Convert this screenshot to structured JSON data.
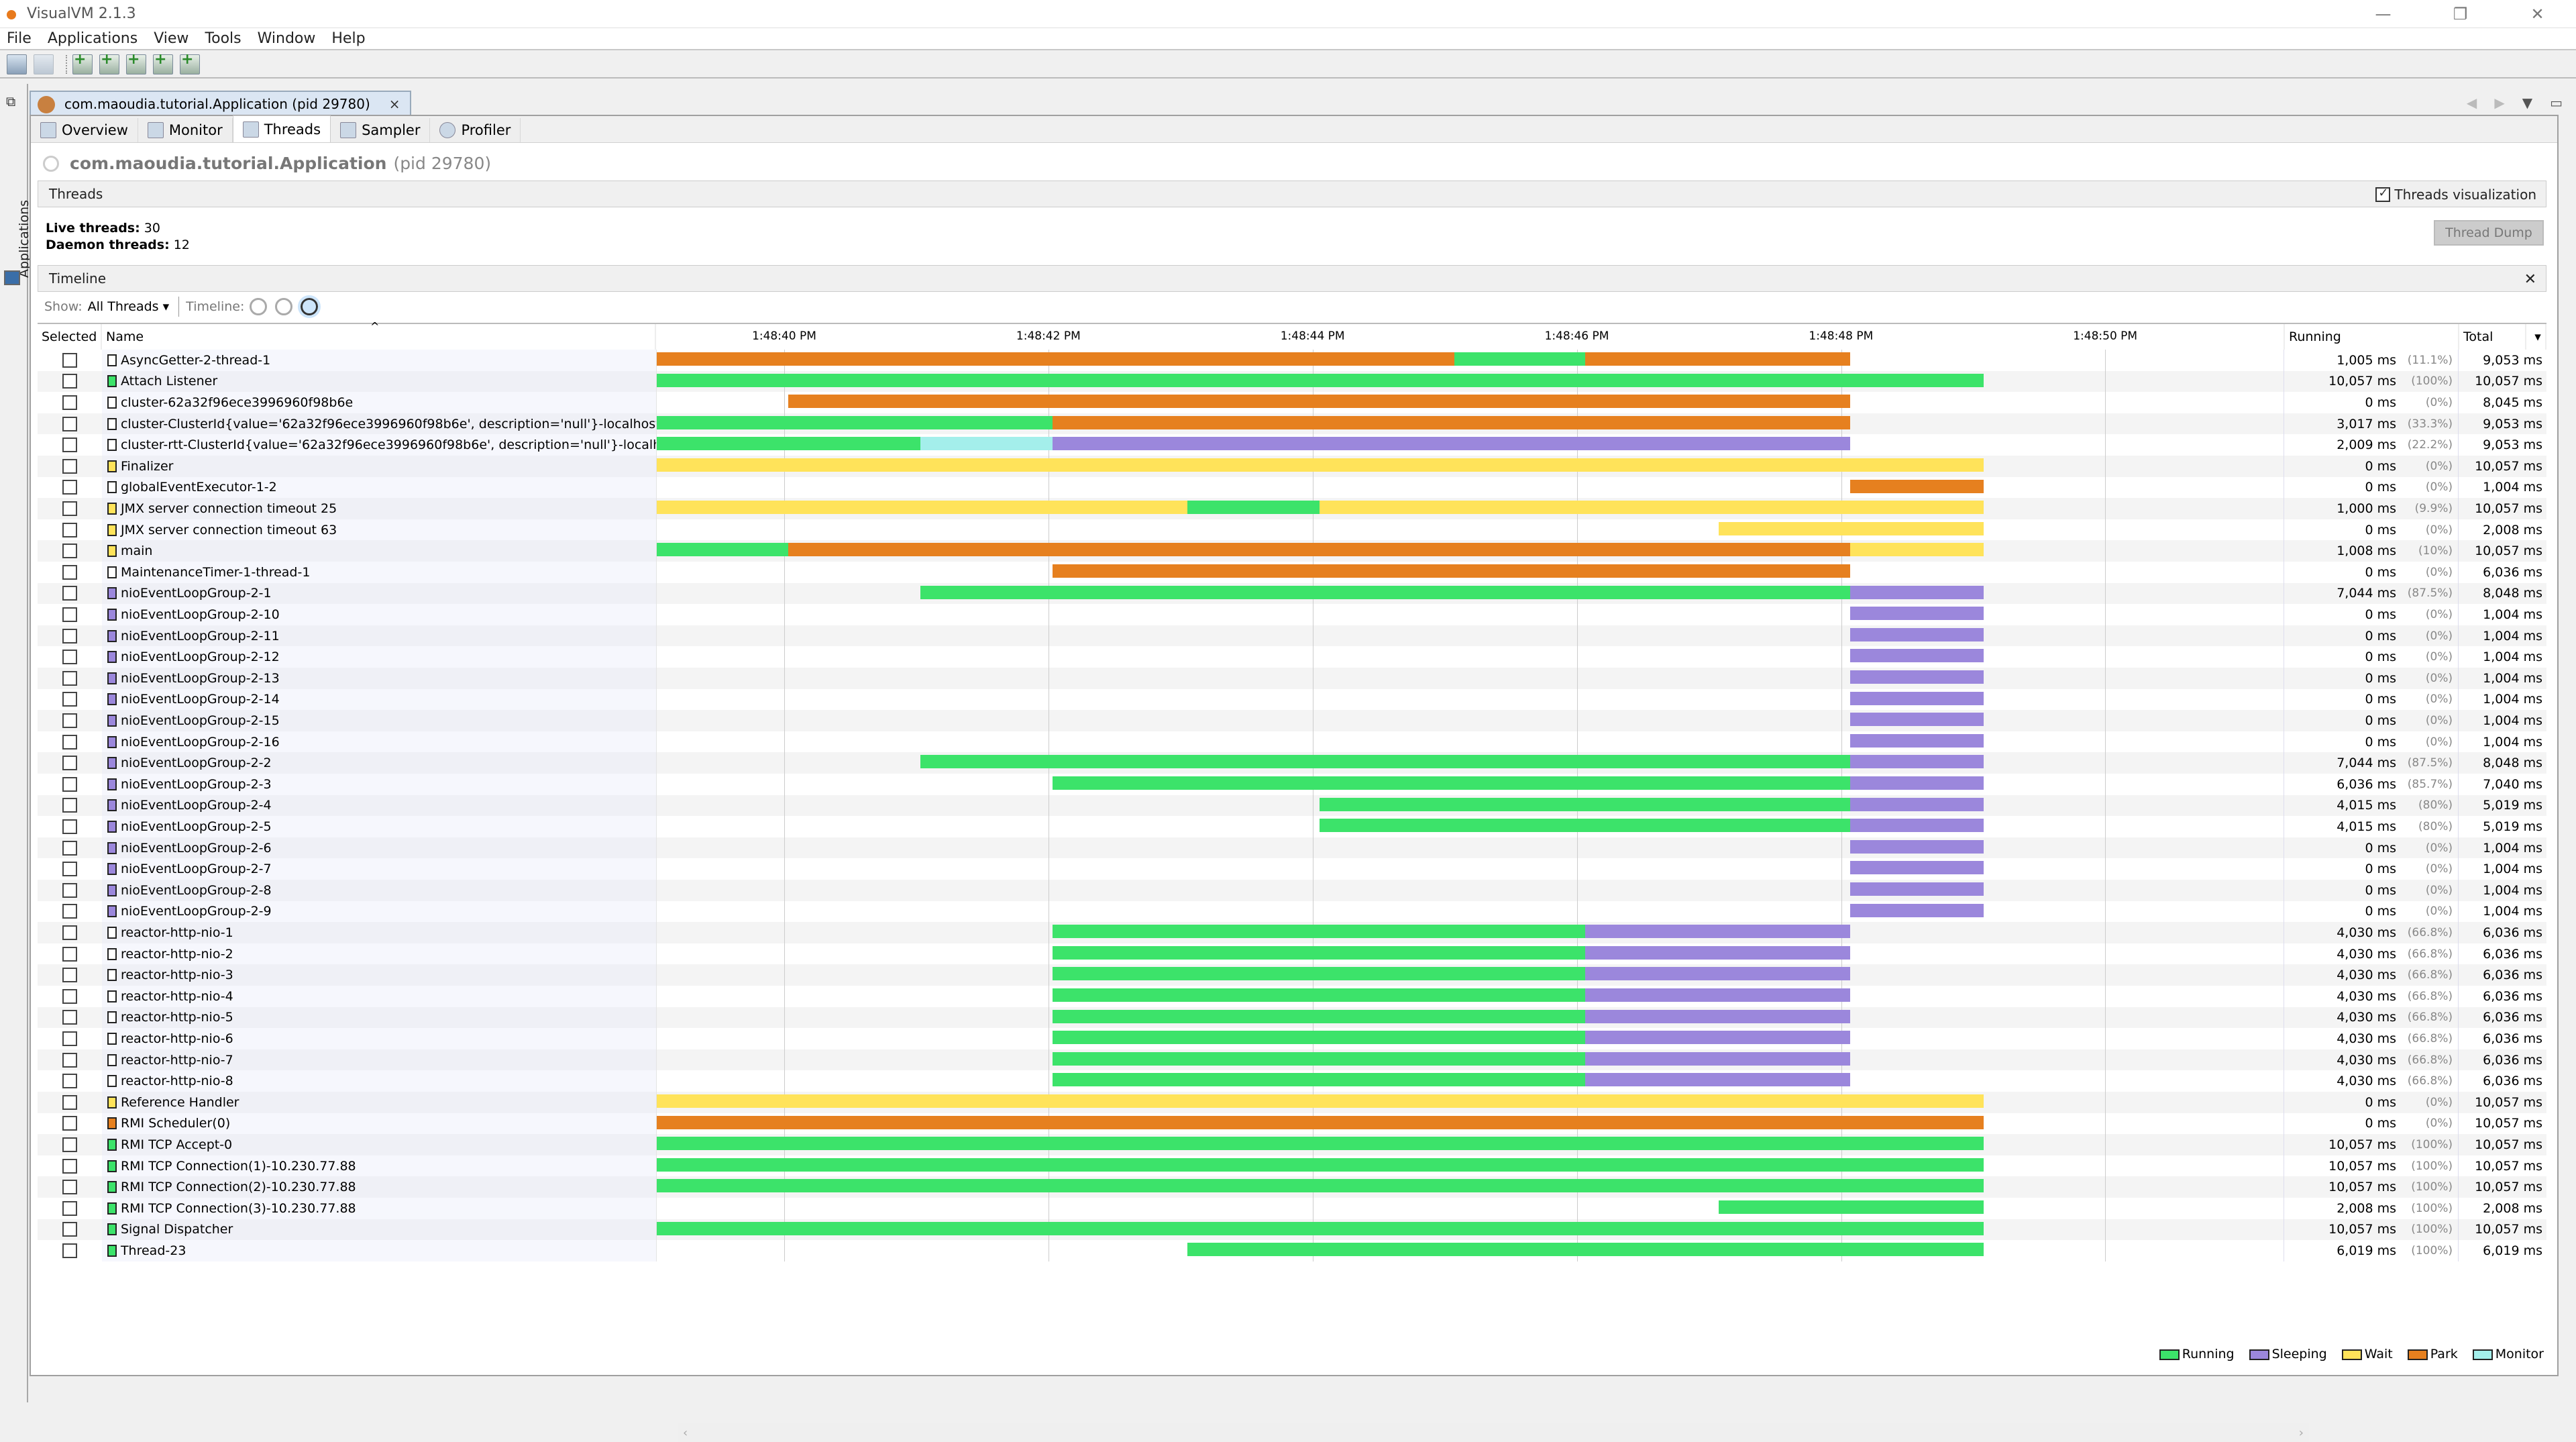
{
  "window": {
    "title": "VisualVM 2.1.3",
    "controls": [
      "minimize",
      "restore",
      "close"
    ]
  },
  "menu": [
    "File",
    "Applications",
    "View",
    "Tools",
    "Window",
    "Help"
  ],
  "toolbar": [
    "open-icon",
    "save-icon",
    "add-remote-host-icon",
    "add-jmx-connection-icon",
    "add-core-dump-icon",
    "add-heap-dump-icon",
    "add-snapshot-icon"
  ],
  "sidebar": {
    "label": "Applications"
  },
  "doc_tab": {
    "label": "com.maoudia.tutorial.Application (pid 29780)",
    "close": "×"
  },
  "view_tabs": [
    {
      "label": "Overview",
      "active": false
    },
    {
      "label": "Monitor",
      "active": false
    },
    {
      "label": "Threads",
      "active": true
    },
    {
      "label": "Sampler",
      "active": false
    },
    {
      "label": "Profiler",
      "active": false
    }
  ],
  "app": {
    "name": "com.maoudia.tutorial.Application",
    "pid": "(pid 29780)"
  },
  "threads_section": {
    "title": "Threads",
    "visualization_label": "Threads visualization",
    "visualization_checked": true,
    "live_label": "Live threads:",
    "live_value": "30",
    "daemon_label": "Daemon threads:",
    "daemon_value": "12",
    "dump_button": "Thread Dump"
  },
  "timeline_section": {
    "title": "Timeline",
    "close": "✕",
    "show_label": "Show:",
    "show_value": "All Threads",
    "timeline_label": "Timeline:"
  },
  "columns": {
    "selected": "Selected",
    "name": "Name",
    "running": "Running",
    "total": "Total"
  },
  "colors": {
    "Running": "#3ce36a",
    "Sleeping": "#9b87dc",
    "Wait": "#ffe35a",
    "Park": "#e6801f",
    "Monitor": "#a4efeb",
    "None": "#ffffff"
  },
  "legend": [
    "Running",
    "Sleeping",
    "Wait",
    "Park",
    "Monitor"
  ],
  "chart_data": {
    "type": "timeline",
    "title": "Threads Timeline",
    "x_ticks": [
      "1:48:40 PM",
      "1:48:42 PM",
      "1:48:44 PM",
      "1:48:46 PM",
      "1:48:48 PM",
      "1:48:50 PM"
    ],
    "tick_offsets_s": [
      0.97,
      2.97,
      4.97,
      6.97,
      8.97,
      10.97
    ],
    "x_range_s": [
      0,
      12.32
    ],
    "threads": [
      {
        "name": "AsyncGetter-2-thread-1",
        "state": "None",
        "running": "1,005 ms",
        "pct": "(11.1%)",
        "total": "9,053 ms",
        "segments": [
          [
            0,
            6.04,
            "Park"
          ],
          [
            6.04,
            7.03,
            "Running"
          ],
          [
            7.03,
            9.04,
            "Park"
          ]
        ]
      },
      {
        "name": "Attach Listener",
        "state": "Running",
        "running": "10,057 ms",
        "pct": "(100%)",
        "total": "10,057 ms",
        "segments": [
          [
            0,
            10.05,
            "Running"
          ]
        ]
      },
      {
        "name": "cluster-62a32f96ece3996960f98b6e",
        "state": "None",
        "running": "0 ms",
        "pct": "(0%)",
        "total": "8,045 ms",
        "segments": [
          [
            1.0,
            9.04,
            "Park"
          ]
        ]
      },
      {
        "name": "cluster-ClusterId{value='62a32f96ece3996960f98b6e', description='null'}-localhost:15015",
        "state": "None",
        "running": "3,017 ms",
        "pct": "(33.3%)",
        "total": "9,053 ms",
        "segments": [
          [
            0,
            3.0,
            "Running"
          ],
          [
            3.0,
            9.04,
            "Park"
          ]
        ]
      },
      {
        "name": "cluster-rtt-ClusterId{value='62a32f96ece3996960f98b6e', description='null'}-localhost:15015",
        "state": "None",
        "running": "2,009 ms",
        "pct": "(22.2%)",
        "total": "9,053 ms",
        "segments": [
          [
            0,
            2.0,
            "Running"
          ],
          [
            2.0,
            3.0,
            "Monitor"
          ],
          [
            3.0,
            9.04,
            "Sleeping"
          ]
        ]
      },
      {
        "name": "Finalizer",
        "state": "Wait",
        "running": "0 ms",
        "pct": "(0%)",
        "total": "10,057 ms",
        "segments": [
          [
            0,
            10.05,
            "Wait"
          ]
        ]
      },
      {
        "name": "globalEventExecutor-1-2",
        "state": "None",
        "running": "0 ms",
        "pct": "(0%)",
        "total": "1,004 ms",
        "segments": [
          [
            9.04,
            10.05,
            "Park"
          ]
        ]
      },
      {
        "name": "JMX server connection timeout 25",
        "state": "Wait",
        "running": "1,000 ms",
        "pct": "(9.9%)",
        "total": "10,057 ms",
        "segments": [
          [
            0,
            4.02,
            "Wait"
          ],
          [
            4.02,
            5.02,
            "Running"
          ],
          [
            5.02,
            10.05,
            "Wait"
          ]
        ]
      },
      {
        "name": "JMX server connection timeout 63",
        "state": "Wait",
        "running": "0 ms",
        "pct": "(0%)",
        "total": "2,008 ms",
        "segments": [
          [
            8.04,
            10.05,
            "Wait"
          ]
        ]
      },
      {
        "name": "main",
        "state": "Wait",
        "running": "1,008 ms",
        "pct": "(10%)",
        "total": "10,057 ms",
        "segments": [
          [
            0,
            1.0,
            "Running"
          ],
          [
            1.0,
            9.04,
            "Park"
          ],
          [
            9.04,
            10.05,
            "Wait"
          ]
        ]
      },
      {
        "name": "MaintenanceTimer-1-thread-1",
        "state": "None",
        "running": "0 ms",
        "pct": "(0%)",
        "total": "6,036 ms",
        "segments": [
          [
            3.0,
            9.04,
            "Park"
          ]
        ]
      },
      {
        "name": "nioEventLoopGroup-2-1",
        "state": "Sleeping",
        "running": "7,044 ms",
        "pct": "(87.5%)",
        "total": "8,048 ms",
        "segments": [
          [
            2.0,
            9.04,
            "Running"
          ],
          [
            9.04,
            10.05,
            "Sleeping"
          ]
        ]
      },
      {
        "name": "nioEventLoopGroup-2-10",
        "state": "Sleeping",
        "running": "0 ms",
        "pct": "(0%)",
        "total": "1,004 ms",
        "segments": [
          [
            9.04,
            10.05,
            "Sleeping"
          ]
        ]
      },
      {
        "name": "nioEventLoopGroup-2-11",
        "state": "Sleeping",
        "running": "0 ms",
        "pct": "(0%)",
        "total": "1,004 ms",
        "segments": [
          [
            9.04,
            10.05,
            "Sleeping"
          ]
        ]
      },
      {
        "name": "nioEventLoopGroup-2-12",
        "state": "Sleeping",
        "running": "0 ms",
        "pct": "(0%)",
        "total": "1,004 ms",
        "segments": [
          [
            9.04,
            10.05,
            "Sleeping"
          ]
        ]
      },
      {
        "name": "nioEventLoopGroup-2-13",
        "state": "Sleeping",
        "running": "0 ms",
        "pct": "(0%)",
        "total": "1,004 ms",
        "segments": [
          [
            9.04,
            10.05,
            "Sleeping"
          ]
        ]
      },
      {
        "name": "nioEventLoopGroup-2-14",
        "state": "Sleeping",
        "running": "0 ms",
        "pct": "(0%)",
        "total": "1,004 ms",
        "segments": [
          [
            9.04,
            10.05,
            "Sleeping"
          ]
        ]
      },
      {
        "name": "nioEventLoopGroup-2-15",
        "state": "Sleeping",
        "running": "0 ms",
        "pct": "(0%)",
        "total": "1,004 ms",
        "segments": [
          [
            9.04,
            10.05,
            "Sleeping"
          ]
        ]
      },
      {
        "name": "nioEventLoopGroup-2-16",
        "state": "Sleeping",
        "running": "0 ms",
        "pct": "(0%)",
        "total": "1,004 ms",
        "segments": [
          [
            9.04,
            10.05,
            "Sleeping"
          ]
        ]
      },
      {
        "name": "nioEventLoopGroup-2-2",
        "state": "Sleeping",
        "running": "7,044 ms",
        "pct": "(87.5%)",
        "total": "8,048 ms",
        "segments": [
          [
            2.0,
            9.04,
            "Running"
          ],
          [
            9.04,
            10.05,
            "Sleeping"
          ]
        ]
      },
      {
        "name": "nioEventLoopGroup-2-3",
        "state": "Sleeping",
        "running": "6,036 ms",
        "pct": "(85.7%)",
        "total": "7,040 ms",
        "segments": [
          [
            3.0,
            9.04,
            "Running"
          ],
          [
            9.04,
            10.05,
            "Sleeping"
          ]
        ]
      },
      {
        "name": "nioEventLoopGroup-2-4",
        "state": "Sleeping",
        "running": "4,015 ms",
        "pct": "(80%)",
        "total": "5,019 ms",
        "segments": [
          [
            5.02,
            9.04,
            "Running"
          ],
          [
            9.04,
            10.05,
            "Sleeping"
          ]
        ]
      },
      {
        "name": "nioEventLoopGroup-2-5",
        "state": "Sleeping",
        "running": "4,015 ms",
        "pct": "(80%)",
        "total": "5,019 ms",
        "segments": [
          [
            5.02,
            9.04,
            "Running"
          ],
          [
            9.04,
            10.05,
            "Sleeping"
          ]
        ]
      },
      {
        "name": "nioEventLoopGroup-2-6",
        "state": "Sleeping",
        "running": "0 ms",
        "pct": "(0%)",
        "total": "1,004 ms",
        "segments": [
          [
            9.04,
            10.05,
            "Sleeping"
          ]
        ]
      },
      {
        "name": "nioEventLoopGroup-2-7",
        "state": "Sleeping",
        "running": "0 ms",
        "pct": "(0%)",
        "total": "1,004 ms",
        "segments": [
          [
            9.04,
            10.05,
            "Sleeping"
          ]
        ]
      },
      {
        "name": "nioEventLoopGroup-2-8",
        "state": "Sleeping",
        "running": "0 ms",
        "pct": "(0%)",
        "total": "1,004 ms",
        "segments": [
          [
            9.04,
            10.05,
            "Sleeping"
          ]
        ]
      },
      {
        "name": "nioEventLoopGroup-2-9",
        "state": "Sleeping",
        "running": "0 ms",
        "pct": "(0%)",
        "total": "1,004 ms",
        "segments": [
          [
            9.04,
            10.05,
            "Sleeping"
          ]
        ]
      },
      {
        "name": "reactor-http-nio-1",
        "state": "None",
        "running": "4,030 ms",
        "pct": "(66.8%)",
        "total": "6,036 ms",
        "segments": [
          [
            3.0,
            7.03,
            "Running"
          ],
          [
            7.03,
            9.04,
            "Sleeping"
          ]
        ]
      },
      {
        "name": "reactor-http-nio-2",
        "state": "None",
        "running": "4,030 ms",
        "pct": "(66.8%)",
        "total": "6,036 ms",
        "segments": [
          [
            3.0,
            7.03,
            "Running"
          ],
          [
            7.03,
            9.04,
            "Sleeping"
          ]
        ]
      },
      {
        "name": "reactor-http-nio-3",
        "state": "None",
        "running": "4,030 ms",
        "pct": "(66.8%)",
        "total": "6,036 ms",
        "segments": [
          [
            3.0,
            7.03,
            "Running"
          ],
          [
            7.03,
            9.04,
            "Sleeping"
          ]
        ]
      },
      {
        "name": "reactor-http-nio-4",
        "state": "None",
        "running": "4,030 ms",
        "pct": "(66.8%)",
        "total": "6,036 ms",
        "segments": [
          [
            3.0,
            7.03,
            "Running"
          ],
          [
            7.03,
            9.04,
            "Sleeping"
          ]
        ]
      },
      {
        "name": "reactor-http-nio-5",
        "state": "None",
        "running": "4,030 ms",
        "pct": "(66.8%)",
        "total": "6,036 ms",
        "segments": [
          [
            3.0,
            7.03,
            "Running"
          ],
          [
            7.03,
            9.04,
            "Sleeping"
          ]
        ]
      },
      {
        "name": "reactor-http-nio-6",
        "state": "None",
        "running": "4,030 ms",
        "pct": "(66.8%)",
        "total": "6,036 ms",
        "segments": [
          [
            3.0,
            7.03,
            "Running"
          ],
          [
            7.03,
            9.04,
            "Sleeping"
          ]
        ]
      },
      {
        "name": "reactor-http-nio-7",
        "state": "None",
        "running": "4,030 ms",
        "pct": "(66.8%)",
        "total": "6,036 ms",
        "segments": [
          [
            3.0,
            7.03,
            "Running"
          ],
          [
            7.03,
            9.04,
            "Sleeping"
          ]
        ]
      },
      {
        "name": "reactor-http-nio-8",
        "state": "None",
        "running": "4,030 ms",
        "pct": "(66.8%)",
        "total": "6,036 ms",
        "segments": [
          [
            3.0,
            7.03,
            "Running"
          ],
          [
            7.03,
            9.04,
            "Sleeping"
          ]
        ]
      },
      {
        "name": "Reference Handler",
        "state": "Wait",
        "running": "0 ms",
        "pct": "(0%)",
        "total": "10,057 ms",
        "segments": [
          [
            0,
            10.05,
            "Wait"
          ]
        ]
      },
      {
        "name": "RMI Scheduler(0)",
        "state": "Park",
        "running": "0 ms",
        "pct": "(0%)",
        "total": "10,057 ms",
        "segments": [
          [
            0,
            10.05,
            "Park"
          ]
        ]
      },
      {
        "name": "RMI TCP Accept-0",
        "state": "Running",
        "running": "10,057 ms",
        "pct": "(100%)",
        "total": "10,057 ms",
        "segments": [
          [
            0,
            10.05,
            "Running"
          ]
        ]
      },
      {
        "name": "RMI TCP Connection(1)-10.230.77.88",
        "state": "Running",
        "running": "10,057 ms",
        "pct": "(100%)",
        "total": "10,057 ms",
        "segments": [
          [
            0,
            10.05,
            "Running"
          ]
        ]
      },
      {
        "name": "RMI TCP Connection(2)-10.230.77.88",
        "state": "Running",
        "running": "10,057 ms",
        "pct": "(100%)",
        "total": "10,057 ms",
        "segments": [
          [
            0,
            10.05,
            "Running"
          ]
        ]
      },
      {
        "name": "RMI TCP Connection(3)-10.230.77.88",
        "state": "Running",
        "running": "2,008 ms",
        "pct": "(100%)",
        "total": "2,008 ms",
        "segments": [
          [
            8.04,
            10.05,
            "Running"
          ]
        ]
      },
      {
        "name": "Signal Dispatcher",
        "state": "Running",
        "running": "10,057 ms",
        "pct": "(100%)",
        "total": "10,057 ms",
        "segments": [
          [
            0,
            10.05,
            "Running"
          ]
        ]
      },
      {
        "name": "Thread-23",
        "state": "Running",
        "running": "6,019 ms",
        "pct": "(100%)",
        "total": "6,019 ms",
        "segments": [
          [
            4.02,
            10.05,
            "Running"
          ]
        ]
      }
    ]
  }
}
